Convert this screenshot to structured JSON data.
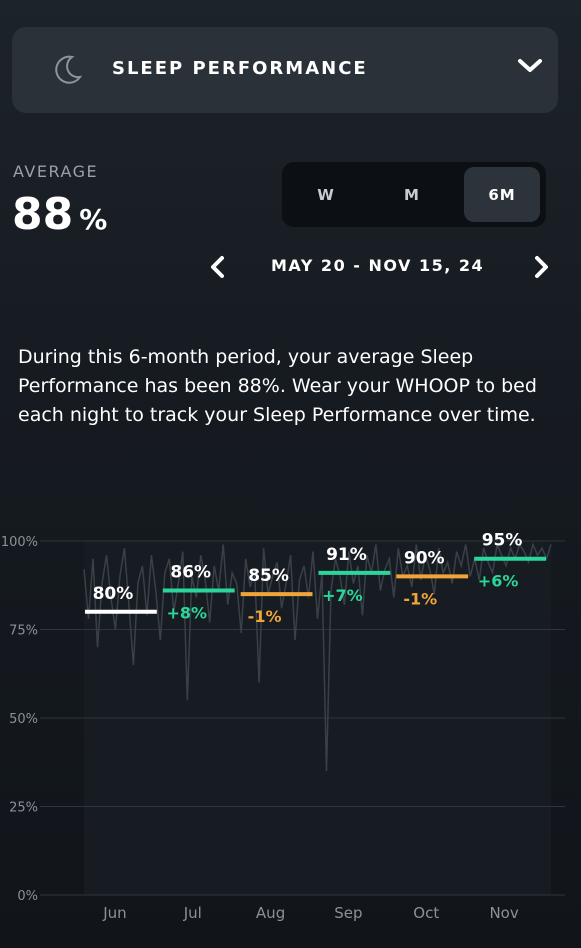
{
  "header": {
    "title": "SLEEP PERFORMANCE",
    "icon": "moon-icon",
    "dropdown_icon": "chevron-down-icon"
  },
  "average": {
    "label": "AVERAGE",
    "value": "88",
    "unit": "%"
  },
  "period_selector": {
    "options": [
      "W",
      "M",
      "6M"
    ],
    "selected": "6M"
  },
  "date_range": {
    "text": "MAY 20 - NOV 15, 24",
    "prev_icon": "chevron-left-icon",
    "next_icon": "chevron-right-icon"
  },
  "description": "During this 6-month period, your average Sleep Performance has been 88%. Wear your WHOOP to bed each night to track your Sleep Performance over time.",
  "colors": {
    "up": "#2bd69a",
    "down": "#f0a43a",
    "neutral": "#ffffff",
    "grid": "#2f353c"
  },
  "chart_data": {
    "type": "line",
    "ylim": [
      0,
      100
    ],
    "ytick_labels": [
      "100%",
      "75%",
      "50%",
      "25%",
      "0%"
    ],
    "categories": [
      "Jun",
      "Jul",
      "Aug",
      "Sep",
      "Oct",
      "Nov"
    ],
    "monthly_averages": [
      80,
      86,
      85,
      91,
      90,
      95
    ],
    "value_labels": [
      "80%",
      "86%",
      "85%",
      "91%",
      "90%",
      "95%"
    ],
    "change_labels": [
      "",
      "+8%",
      "-1%",
      "+7%",
      "-1%",
      "+6%"
    ],
    "change_direction": [
      "none",
      "up",
      "down",
      "up",
      "down",
      "up"
    ],
    "daily_values": [
      92,
      78,
      95,
      70,
      88,
      96,
      84,
      75,
      90,
      98,
      82,
      65,
      88,
      93,
      79,
      96,
      86,
      72,
      91,
      95,
      80,
      88,
      97,
      55,
      90,
      84,
      96,
      89,
      77,
      93,
      86,
      99,
      82,
      91,
      88,
      74,
      95,
      87,
      92,
      60,
      98,
      85,
      90,
      94,
      81,
      88,
      96,
      72,
      89,
      93,
      84,
      97,
      78,
      91,
      35,
      86,
      95,
      90,
      82,
      97,
      88,
      93,
      79,
      96,
      91,
      99,
      86,
      92,
      95,
      84,
      98,
      90,
      93,
      87,
      99,
      89,
      96,
      92,
      85,
      98,
      91,
      94,
      88,
      97,
      93,
      99,
      90,
      95,
      89,
      98,
      94,
      91,
      99,
      96,
      93,
      98,
      95,
      99,
      97,
      94,
      99,
      96,
      98,
      95,
      99
    ]
  }
}
